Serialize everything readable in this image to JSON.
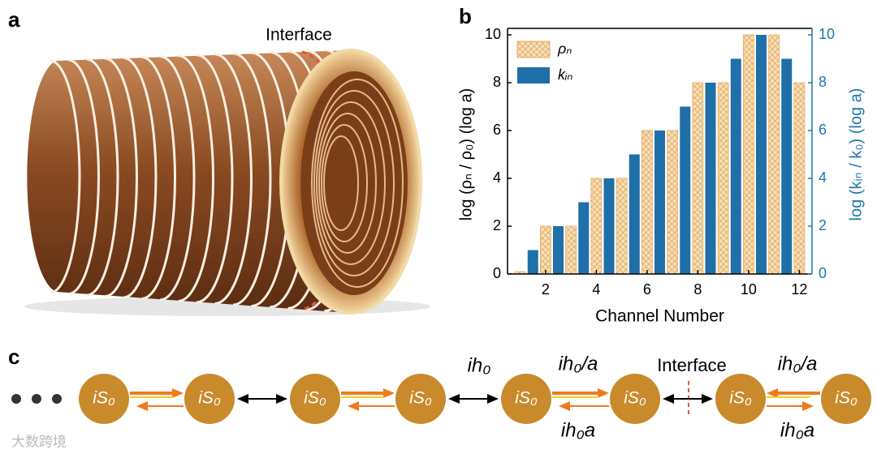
{
  "panel_labels": [
    "a",
    "b",
    "c"
  ],
  "illustration": {
    "label": "Interface"
  },
  "chart_data": {
    "type": "bar",
    "xlabel": "Channel Number",
    "ylabel": "log (ρₙ / ρ₀)  (log a)",
    "y2label": "log (kᵢₙ / k₀)  (log a)",
    "xlim": [
      0.5,
      12.5
    ],
    "xticks": [
      2,
      4,
      6,
      8,
      10,
      12
    ],
    "ylim": [
      0,
      10
    ],
    "yticks": [
      0,
      2,
      4,
      6,
      8,
      10
    ],
    "y2lim": [
      0,
      10
    ],
    "y2ticks": [
      0,
      2,
      4,
      6,
      8,
      10
    ],
    "y2color": "#1f78a8",
    "legend": "upper left",
    "series": [
      {
        "name": "ρₙ",
        "color": "#e3ad68",
        "hatch": true,
        "x": [
          1,
          2,
          3,
          4,
          5,
          6,
          7,
          8,
          9,
          10,
          11,
          12
        ],
        "values": [
          0.1,
          2,
          2,
          4,
          4,
          6,
          6,
          8,
          8,
          10,
          10,
          8
        ]
      },
      {
        "name": "kᵢₙ",
        "color": "#1f6fa8",
        "axis": "y2",
        "x": [
          1.5,
          2.5,
          3.5,
          4.5,
          5.5,
          6.5,
          7.5,
          8.5,
          9.5,
          10.5,
          11.5
        ],
        "values": [
          1,
          2,
          3,
          4,
          5,
          6,
          7,
          8,
          9,
          10,
          9
        ]
      }
    ]
  },
  "diagram": {
    "nodes": [
      "iS₀",
      "iS₀",
      "iS₀",
      "iS₀",
      "iS₀",
      "iS₀",
      "iS₀",
      "iS₀"
    ],
    "labels": [
      "ih₀",
      "ih₀/a",
      "ih₀a",
      "Interface",
      "ih₀/a",
      "ih₀a"
    ]
  },
  "watermark": "大数跨境"
}
